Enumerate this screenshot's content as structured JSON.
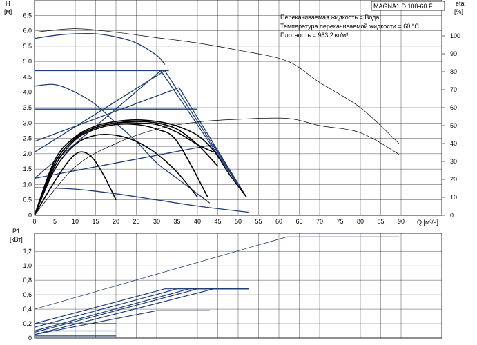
{
  "model_label": "MAGNA1 D 100-60 F",
  "info_lines": [
    "Перекачиваемая жидкость = Вода",
    "Температура перекачиваемой жидкости = 60 °C",
    "Плотность = 983.2 кг/м³"
  ],
  "colors": {
    "curve_blue": "#1f3e78",
    "curve_black": "#000000",
    "grid": "#000000"
  },
  "chart_data": [
    {
      "type": "line",
      "title": "",
      "ylabel_top": "H",
      "ylabel_unit": "[м]",
      "y2label_top": "eta",
      "y2label_unit": "[%]",
      "xlabel": "Q [м³/ч]",
      "xlim": [
        0,
        100
      ],
      "ylim": [
        0,
        7.0
      ],
      "y2lim": [
        0,
        120
      ],
      "x_ticks": [
        "0",
        "5",
        "10",
        "15",
        "20",
        "25",
        "30",
        "35",
        "40",
        "45",
        "50",
        "55",
        "60",
        "65",
        "70",
        "75",
        "80",
        "85",
        "90"
      ],
      "x_tick_values": [
        0,
        5,
        10,
        15,
        20,
        25,
        30,
        35,
        40,
        45,
        50,
        55,
        60,
        65,
        70,
        75,
        80,
        85,
        90
      ],
      "y_ticks": [
        "0",
        "0.5",
        "1.0",
        "1.5",
        "2.0",
        "2.5",
        "3.0",
        "3.5",
        "4.0",
        "4.5",
        "5.0",
        "5.5",
        "6.0",
        "6.5"
      ],
      "y_tick_values": [
        0,
        0.5,
        1.0,
        1.5,
        2.0,
        2.5,
        3.0,
        3.5,
        4.0,
        4.5,
        5.0,
        5.5,
        6.0,
        6.5
      ],
      "y2_ticks": [
        "0",
        "10",
        "20",
        "30",
        "40",
        "50",
        "60",
        "70",
        "80",
        "90",
        "100"
      ],
      "y2_tick_values": [
        0,
        10,
        20,
        30,
        40,
        50,
        60,
        70,
        80,
        90,
        100
      ],
      "grid": true,
      "series": [
        {
          "axis": "y",
          "color": "blue",
          "x": [
            0,
            10,
            20,
            30,
            40,
            52.5
          ],
          "y": [
            0.9,
            0.85,
            0.7,
            0.5,
            0.3,
            0.1
          ]
        },
        {
          "axis": "y",
          "color": "blue",
          "x": [
            0,
            5,
            10,
            15,
            20,
            25,
            30,
            35,
            40,
            43
          ],
          "y": [
            4.2,
            4.25,
            4.0,
            3.6,
            3.0,
            2.4,
            1.7,
            1.2,
            0.7,
            0.4
          ]
        },
        {
          "axis": "y",
          "color": "blue",
          "x": [
            0,
            5,
            10,
            15,
            20,
            25,
            30,
            32
          ],
          "y": [
            5.75,
            5.85,
            5.9,
            5.9,
            5.8,
            5.6,
            5.2,
            4.9
          ]
        },
        {
          "axis": "y",
          "color": "blue",
          "x": [
            0,
            32,
            52
          ],
          "y": [
            2.05,
            4.7,
            0.6
          ]
        },
        {
          "axis": "y",
          "color": "blue",
          "x": [
            0,
            31,
            52
          ],
          "y": [
            1.2,
            4.7,
            0.6
          ]
        },
        {
          "axis": "y",
          "color": "blue",
          "x": [
            0,
            35.5,
            52
          ],
          "y": [
            2.4,
            4.15,
            0.6
          ]
        },
        {
          "axis": "y",
          "color": "blue",
          "x": [
            0,
            44,
            52
          ],
          "y": [
            1.2,
            2.3,
            0.6
          ]
        },
        {
          "axis": "y",
          "color": "blue",
          "x": [
            0,
            33
          ],
          "y": [
            4.7,
            4.7
          ]
        },
        {
          "axis": "y",
          "color": "blue",
          "x": [
            0,
            40
          ],
          "y": [
            3.45,
            3.45
          ]
        },
        {
          "axis": "y",
          "color": "blue",
          "x": [
            0,
            44
          ],
          "y": [
            2.25,
            2.25
          ]
        },
        {
          "axis": "y",
          "color": "black",
          "x": [
            0,
            5,
            10,
            15,
            20,
            25,
            30,
            35,
            40,
            44
          ],
          "y": [
            0,
            1.7,
            2.5,
            2.85,
            3.0,
            3.0,
            2.95,
            2.7,
            2.3,
            2.05
          ]
        },
        {
          "axis": "y",
          "color": "black",
          "x": [
            0,
            5,
            10,
            15,
            20,
            25,
            30,
            35,
            40,
            44,
            48,
            52
          ],
          "y": [
            0,
            1.8,
            2.55,
            2.9,
            3.05,
            3.1,
            3.05,
            2.9,
            2.6,
            2.1,
            1.3,
            0.6
          ]
        },
        {
          "axis": "y",
          "color": "black",
          "x": [
            0,
            5,
            10,
            15,
            20,
            25,
            30,
            35,
            40
          ],
          "y": [
            0,
            1.5,
            2.3,
            2.6,
            2.6,
            2.4,
            2.0,
            1.4,
            0.6
          ]
        },
        {
          "axis": "y",
          "color": "black",
          "x": [
            0,
            5,
            10,
            15,
            20,
            25,
            30,
            35,
            42.5
          ],
          "y": [
            0,
            1.6,
            2.45,
            2.8,
            2.95,
            2.95,
            2.8,
            2.4,
            0.6
          ]
        },
        {
          "axis": "y",
          "color": "black",
          "x": [
            0,
            4,
            8,
            11,
            14,
            17,
            20
          ],
          "y": [
            0,
            0.9,
            1.7,
            2.05,
            1.9,
            1.3,
            0.5
          ]
        },
        {
          "axis": "y",
          "color": "black",
          "x": [
            0,
            5,
            10,
            15,
            20,
            25,
            30,
            35,
            40,
            45
          ],
          "y": [
            0,
            1.7,
            2.5,
            2.85,
            3.0,
            3.05,
            3.0,
            2.8,
            2.3,
            1.6
          ]
        },
        {
          "axis": "y2",
          "color": "black",
          "x": [
            0,
            10,
            20,
            30,
            40,
            50,
            62,
            70,
            80,
            89.5
          ],
          "y": [
            0,
            27,
            40,
            48,
            52,
            53.5,
            54,
            50,
            46,
            34
          ]
        },
        {
          "axis": "y2",
          "color": "black",
          "x": [
            0,
            10,
            20,
            30,
            40,
            50,
            62,
            70,
            80,
            89.5
          ],
          "y": [
            102,
            104,
            102,
            99,
            96,
            92,
            86,
            74,
            60,
            40
          ]
        }
      ]
    },
    {
      "type": "line",
      "title": "",
      "ylabel_top": "P1",
      "ylabel_unit": "[кВт]",
      "xlabel": "",
      "xlim": [
        0,
        100
      ],
      "ylim": [
        0,
        1.45
      ],
      "y_ticks": [
        "0",
        "0,2",
        "0,4",
        "0,6",
        "0,8",
        "1,0",
        "1,2"
      ],
      "y_tick_values": [
        0,
        0.2,
        0.4,
        0.6,
        0.8,
        1.0,
        1.2
      ],
      "grid": true,
      "series": [
        {
          "color": "blue",
          "x": [
            0,
            62,
            89.5
          ],
          "y": [
            0.4,
            1.4,
            1.4
          ]
        },
        {
          "color": "blue",
          "x": [
            0,
            32,
            52.5
          ],
          "y": [
            0.2,
            0.68,
            0.68
          ]
        },
        {
          "color": "blue",
          "x": [
            0,
            35,
            52.5
          ],
          "y": [
            0.15,
            0.68,
            0.68
          ]
        },
        {
          "color": "blue",
          "x": [
            0,
            38,
            52.5
          ],
          "y": [
            0.1,
            0.68,
            0.68
          ]
        },
        {
          "color": "blue",
          "x": [
            0,
            40,
            52.5
          ],
          "y": [
            0.08,
            0.68,
            0.68
          ]
        },
        {
          "color": "blue",
          "x": [
            0,
            44,
            52.5
          ],
          "y": [
            0.05,
            0.68,
            0.68
          ]
        },
        {
          "color": "blue",
          "x": [
            0,
            30,
            43
          ],
          "y": [
            0.05,
            0.38,
            0.38
          ]
        },
        {
          "color": "blue",
          "x": [
            0,
            20
          ],
          "y": [
            0.2,
            0.2
          ]
        },
        {
          "color": "blue",
          "x": [
            0,
            20
          ],
          "y": [
            0.03,
            0.03
          ]
        },
        {
          "color": "blue",
          "x": [
            0,
            20
          ],
          "y": [
            0.1,
            0.1
          ]
        }
      ]
    }
  ]
}
